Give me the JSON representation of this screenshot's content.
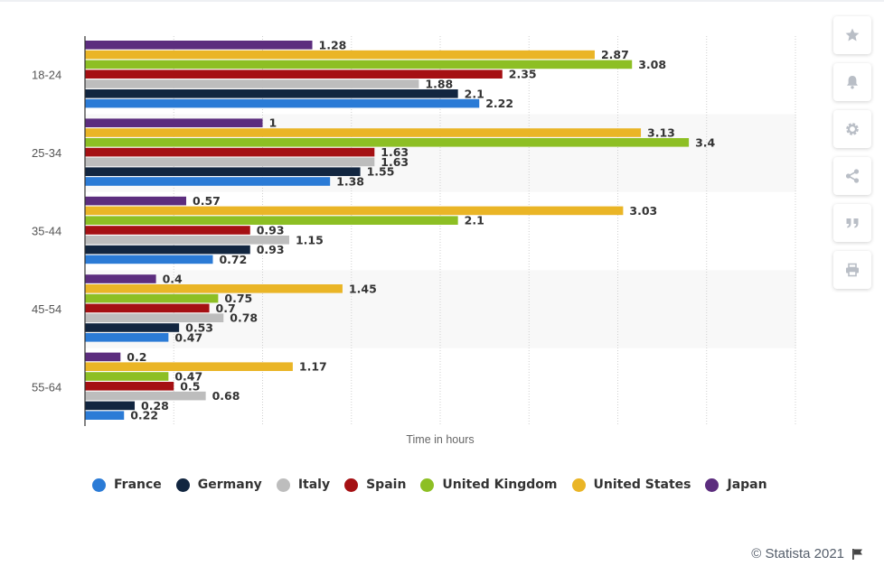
{
  "chart_data": {
    "type": "bar",
    "orientation": "horizontal",
    "categories": [
      "18-24",
      "25-34",
      "35-44",
      "45-54",
      "55-64"
    ],
    "series": [
      {
        "name": "Japan",
        "color": "#5c2d7e",
        "values": [
          1.28,
          1,
          0.57,
          0.4,
          0.2
        ]
      },
      {
        "name": "United States",
        "color": "#eab526",
        "values": [
          2.87,
          3.13,
          3.03,
          1.45,
          1.17
        ]
      },
      {
        "name": "United Kingdom",
        "color": "#8dbf24",
        "values": [
          3.08,
          3.4,
          2.1,
          0.75,
          0.47
        ]
      },
      {
        "name": "Spain",
        "color": "#a51013",
        "values": [
          2.35,
          1.63,
          0.93,
          0.7,
          0.5
        ]
      },
      {
        "name": "Italy",
        "color": "#bdbdbd",
        "values": [
          1.88,
          1.63,
          1.15,
          0.78,
          0.68
        ]
      },
      {
        "name": "Germany",
        "color": "#122640",
        "values": [
          2.1,
          1.55,
          0.93,
          0.53,
          0.28
        ]
      },
      {
        "name": "France",
        "color": "#2b7bd6",
        "values": [
          2.22,
          1.38,
          0.72,
          0.47,
          0.22
        ]
      }
    ],
    "xlabel": "Time in hours",
    "ylabel": "",
    "xlim": [
      0,
      4
    ],
    "grid": true,
    "legend_position": "bottom"
  },
  "legend": [
    {
      "label": "France",
      "color": "#2b7bd6"
    },
    {
      "label": "Germany",
      "color": "#122640"
    },
    {
      "label": "Italy",
      "color": "#bdbdbd"
    },
    {
      "label": "Spain",
      "color": "#a51013"
    },
    {
      "label": "United Kingdom",
      "color": "#8dbf24"
    },
    {
      "label": "United States",
      "color": "#eab526"
    },
    {
      "label": "Japan",
      "color": "#5c2d7e"
    }
  ],
  "toolbar": [
    {
      "name": "star-icon"
    },
    {
      "name": "bell-icon"
    },
    {
      "name": "gear-icon"
    },
    {
      "name": "share-icon"
    },
    {
      "name": "quote-icon"
    },
    {
      "name": "print-icon"
    }
  ],
  "footer": {
    "credit": "© Statista 2021"
  }
}
